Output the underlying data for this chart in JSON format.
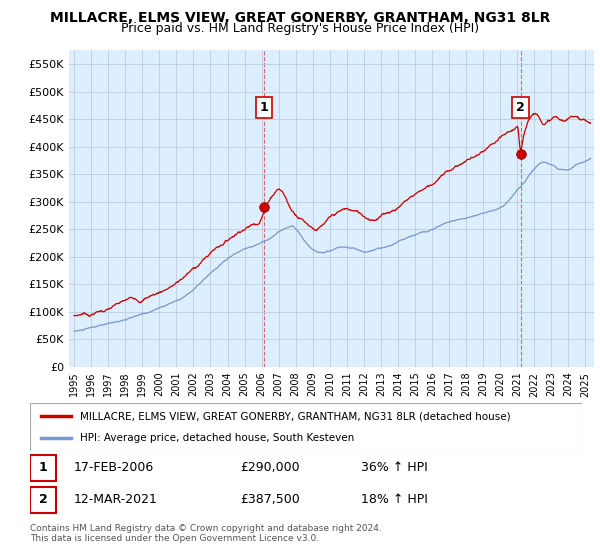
{
  "title": "MILLACRE, ELMS VIEW, GREAT GONERBY, GRANTHAM, NG31 8LR",
  "subtitle": "Price paid vs. HM Land Registry's House Price Index (HPI)",
  "title_fontsize": 10,
  "subtitle_fontsize": 9,
  "ylabel_ticks": [
    "£0",
    "£50K",
    "£100K",
    "£150K",
    "£200K",
    "£250K",
    "£300K",
    "£350K",
    "£400K",
    "£450K",
    "£500K",
    "£550K"
  ],
  "ytick_values": [
    0,
    50000,
    100000,
    150000,
    200000,
    250000,
    300000,
    350000,
    400000,
    450000,
    500000,
    550000
  ],
  "ylim": [
    0,
    575000
  ],
  "xlim_start": 1994.7,
  "xlim_end": 2025.5,
  "xtick_years": [
    1995,
    1996,
    1997,
    1998,
    1999,
    2000,
    2001,
    2002,
    2003,
    2004,
    2005,
    2006,
    2007,
    2008,
    2009,
    2010,
    2011,
    2012,
    2013,
    2014,
    2015,
    2016,
    2017,
    2018,
    2019,
    2020,
    2021,
    2022,
    2023,
    2024,
    2025
  ],
  "sale1_x": 2006.12,
  "sale1_y": 290000,
  "sale1_label": "1",
  "sale1_date": "17-FEB-2006",
  "sale1_price": "£290,000",
  "sale1_hpi": "36% ↑ HPI",
  "sale2_x": 2021.19,
  "sale2_y": 387500,
  "sale2_label": "2",
  "sale2_date": "12-MAR-2021",
  "sale2_price": "£387,500",
  "sale2_hpi": "18% ↑ HPI",
  "line_color_red": "#cc0000",
  "line_color_blue": "#7799cc",
  "vline_color": "#dd4444",
  "sale_marker_color": "#cc0000",
  "chart_bg_color": "#ddeeff",
  "background_color": "#ffffff",
  "grid_color": "#bbccdd",
  "legend_label_red": "MILLACRE, ELMS VIEW, GREAT GONERBY, GRANTHAM, NG31 8LR (detached house)",
  "legend_label_blue": "HPI: Average price, detached house, South Kesteven",
  "footer1": "Contains HM Land Registry data © Crown copyright and database right 2024.",
  "footer2": "This data is licensed under the Open Government Licence v3.0.",
  "hpi_points": [
    [
      1995.0,
      65000
    ],
    [
      1995.5,
      67000
    ],
    [
      1996.0,
      70000
    ],
    [
      1996.5,
      73000
    ],
    [
      1997.0,
      76000
    ],
    [
      1997.5,
      80000
    ],
    [
      1998.0,
      84000
    ],
    [
      1998.5,
      88000
    ],
    [
      1999.0,
      92000
    ],
    [
      1999.5,
      97000
    ],
    [
      2000.0,
      103000
    ],
    [
      2000.5,
      110000
    ],
    [
      2001.0,
      117000
    ],
    [
      2001.5,
      126000
    ],
    [
      2002.0,
      138000
    ],
    [
      2002.5,
      152000
    ],
    [
      2003.0,
      165000
    ],
    [
      2003.5,
      178000
    ],
    [
      2004.0,
      190000
    ],
    [
      2004.5,
      200000
    ],
    [
      2005.0,
      208000
    ],
    [
      2005.5,
      214000
    ],
    [
      2006.0,
      220000
    ],
    [
      2006.5,
      228000
    ],
    [
      2007.0,
      240000
    ],
    [
      2007.5,
      248000
    ],
    [
      2007.8,
      250000
    ],
    [
      2008.0,
      245000
    ],
    [
      2008.5,
      228000
    ],
    [
      2009.0,
      210000
    ],
    [
      2009.5,
      205000
    ],
    [
      2010.0,
      208000
    ],
    [
      2010.5,
      212000
    ],
    [
      2011.0,
      210000
    ],
    [
      2011.5,
      207000
    ],
    [
      2012.0,
      203000
    ],
    [
      2012.5,
      206000
    ],
    [
      2013.0,
      210000
    ],
    [
      2013.5,
      215000
    ],
    [
      2014.0,
      222000
    ],
    [
      2014.5,
      230000
    ],
    [
      2015.0,
      237000
    ],
    [
      2015.5,
      243000
    ],
    [
      2016.0,
      250000
    ],
    [
      2016.5,
      258000
    ],
    [
      2017.0,
      265000
    ],
    [
      2017.5,
      270000
    ],
    [
      2018.0,
      274000
    ],
    [
      2018.5,
      278000
    ],
    [
      2019.0,
      282000
    ],
    [
      2019.5,
      287000
    ],
    [
      2020.0,
      293000
    ],
    [
      2020.5,
      305000
    ],
    [
      2021.0,
      325000
    ],
    [
      2021.5,
      345000
    ],
    [
      2022.0,
      365000
    ],
    [
      2022.5,
      375000
    ],
    [
      2023.0,
      370000
    ],
    [
      2023.5,
      362000
    ],
    [
      2024.0,
      360000
    ],
    [
      2024.5,
      368000
    ],
    [
      2025.0,
      375000
    ]
  ],
  "red_points": [
    [
      1995.0,
      93000
    ],
    [
      1995.3,
      95000
    ],
    [
      1995.6,
      98000
    ],
    [
      1995.9,
      96000
    ],
    [
      1996.2,
      100000
    ],
    [
      1996.5,
      103000
    ],
    [
      1996.8,
      105000
    ],
    [
      1997.1,
      108000
    ],
    [
      1997.4,
      112000
    ],
    [
      1997.7,
      115000
    ],
    [
      1998.0,
      118000
    ],
    [
      1998.3,
      121000
    ],
    [
      1998.6,
      123000
    ],
    [
      1998.9,
      120000
    ],
    [
      1999.2,
      125000
    ],
    [
      1999.5,
      130000
    ],
    [
      1999.8,
      133000
    ],
    [
      2000.1,
      138000
    ],
    [
      2000.4,
      143000
    ],
    [
      2000.7,
      148000
    ],
    [
      2001.0,
      153000
    ],
    [
      2001.3,
      160000
    ],
    [
      2001.6,
      168000
    ],
    [
      2001.9,
      175000
    ],
    [
      2002.2,
      183000
    ],
    [
      2002.5,
      192000
    ],
    [
      2002.8,
      200000
    ],
    [
      2003.1,
      210000
    ],
    [
      2003.4,
      218000
    ],
    [
      2003.7,
      225000
    ],
    [
      2004.0,
      232000
    ],
    [
      2004.3,
      240000
    ],
    [
      2004.6,
      248000
    ],
    [
      2004.9,
      255000
    ],
    [
      2005.2,
      260000
    ],
    [
      2005.5,
      265000
    ],
    [
      2005.8,
      270000
    ],
    [
      2006.12,
      290000
    ],
    [
      2006.4,
      310000
    ],
    [
      2006.7,
      325000
    ],
    [
      2007.0,
      335000
    ],
    [
      2007.2,
      330000
    ],
    [
      2007.4,
      320000
    ],
    [
      2007.6,
      305000
    ],
    [
      2007.8,
      295000
    ],
    [
      2008.0,
      290000
    ],
    [
      2008.3,
      285000
    ],
    [
      2008.6,
      278000
    ],
    [
      2008.9,
      272000
    ],
    [
      2009.2,
      268000
    ],
    [
      2009.5,
      272000
    ],
    [
      2009.8,
      278000
    ],
    [
      2010.0,
      283000
    ],
    [
      2010.3,
      288000
    ],
    [
      2010.6,
      292000
    ],
    [
      2010.9,
      295000
    ],
    [
      2011.2,
      293000
    ],
    [
      2011.5,
      290000
    ],
    [
      2011.8,
      285000
    ],
    [
      2012.1,
      280000
    ],
    [
      2012.4,
      278000
    ],
    [
      2012.7,
      280000
    ],
    [
      2013.0,
      285000
    ],
    [
      2013.3,
      290000
    ],
    [
      2013.6,
      295000
    ],
    [
      2013.9,
      300000
    ],
    [
      2014.2,
      308000
    ],
    [
      2014.5,
      316000
    ],
    [
      2014.8,
      323000
    ],
    [
      2015.1,
      330000
    ],
    [
      2015.4,
      336000
    ],
    [
      2015.7,
      342000
    ],
    [
      2016.0,
      348000
    ],
    [
      2016.3,
      355000
    ],
    [
      2016.6,
      362000
    ],
    [
      2016.9,
      368000
    ],
    [
      2017.2,
      374000
    ],
    [
      2017.5,
      380000
    ],
    [
      2017.8,
      385000
    ],
    [
      2018.1,
      390000
    ],
    [
      2018.4,
      393000
    ],
    [
      2018.7,
      397000
    ],
    [
      2019.0,
      400000
    ],
    [
      2019.3,
      405000
    ],
    [
      2019.6,
      410000
    ],
    [
      2019.9,
      415000
    ],
    [
      2020.2,
      420000
    ],
    [
      2020.5,
      425000
    ],
    [
      2020.8,
      430000
    ],
    [
      2021.0,
      435000
    ],
    [
      2021.19,
      387500
    ],
    [
      2021.4,
      420000
    ],
    [
      2021.7,
      450000
    ],
    [
      2022.0,
      460000
    ],
    [
      2022.3,
      455000
    ],
    [
      2022.6,
      445000
    ],
    [
      2022.9,
      450000
    ],
    [
      2023.2,
      455000
    ],
    [
      2023.5,
      450000
    ],
    [
      2023.8,
      445000
    ],
    [
      2024.1,
      450000
    ],
    [
      2024.4,
      455000
    ],
    [
      2024.7,
      452000
    ],
    [
      2025.0,
      448000
    ]
  ]
}
